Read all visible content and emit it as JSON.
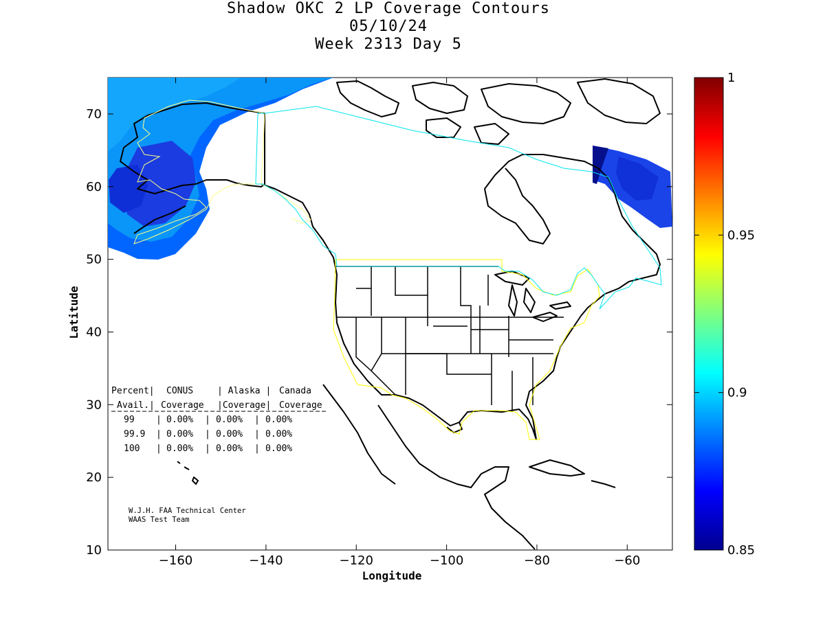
{
  "title": {
    "line1": "Shadow OKC 2 LP Coverage Contours",
    "line2": "05/10/24",
    "line3": "Week 2313 Day 5"
  },
  "chart_data": {
    "type": "heatmap",
    "xlabel": "Longitude",
    "ylabel": "Latitude",
    "xlim": [
      -175,
      -50
    ],
    "ylim": [
      10,
      75
    ],
    "xticks": [
      -160,
      -140,
      -120,
      -100,
      -80,
      -60
    ],
    "yticks": [
      10,
      20,
      30,
      40,
      50,
      60,
      70
    ],
    "colorbar": {
      "min": 0.85,
      "max": 1,
      "ticks": [
        "0.85",
        "0.9",
        "0.95",
        "1"
      ],
      "colormap": "jet",
      "position": "right"
    },
    "coverage_regions": [
      {
        "name": "North Pacific / Alaska",
        "level_range": [
          0.85,
          0.9
        ],
        "color": "#1f5fe6"
      },
      {
        "name": "Labrador Sea",
        "level_range": [
          0.85,
          0.87
        ],
        "color": "#0a10a8"
      }
    ],
    "boundaries": {
      "conus": {
        "color": "#ffff00"
      },
      "alaska": {
        "color": "#ffff00"
      },
      "canada": {
        "color": "#00e5ee"
      }
    },
    "table": {
      "headers": [
        "Percent|",
        "CONUS",
        "| Alaska |",
        "Canada"
      ],
      "subheaders": [
        "Avail.|",
        "Coverage",
        "|Coverage|",
        "Coverage"
      ],
      "rows": [
        {
          "avail": "99",
          "conus": "0.00%",
          "alaska": "0.00%",
          "canada": "0.00%"
        },
        {
          "avail": "99.9",
          "conus": "0.00%",
          "alaska": "0.00%",
          "canada": "0.00%"
        },
        {
          "avail": "100",
          "conus": "0.00%",
          "alaska": "0.00%",
          "canada": "0.00%"
        }
      ]
    },
    "credit": {
      "line1": "W.J.H. FAA Technical Center",
      "line2": "WAAS Test Team"
    }
  }
}
